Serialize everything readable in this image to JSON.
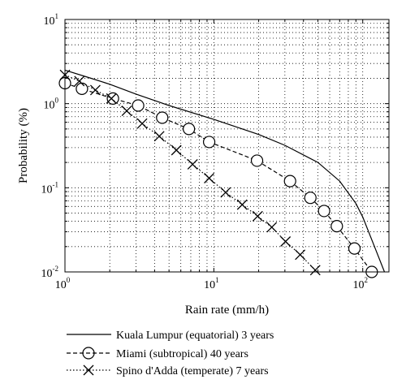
{
  "chart_data": {
    "type": "line",
    "xlabel": "Rain rate (mm/h)",
    "ylabel": "Probability (%)",
    "xscale": "log",
    "yscale": "log",
    "xlim": [
      1,
      150
    ],
    "ylim": [
      0.01,
      10
    ],
    "grid": true,
    "legend_position": "below",
    "x_ticks": [
      {
        "base": "10",
        "exp": "0",
        "value": 1
      },
      {
        "base": "10",
        "exp": "1",
        "value": 10
      },
      {
        "base": "10",
        "exp": "2",
        "value": 100
      }
    ],
    "y_ticks": [
      {
        "base": "10",
        "exp": "-2",
        "value": 0.01
      },
      {
        "base": "10",
        "exp": "-1",
        "value": 0.1
      },
      {
        "base": "10",
        "exp": "0",
        "value": 1
      },
      {
        "base": "10",
        "exp": "1",
        "value": 10
      }
    ],
    "series": [
      {
        "name": "Kuala Lumpur (equatorial) 3 years",
        "style": "solid",
        "marker": "none",
        "x": [
          1,
          1.5,
          2,
          3,
          5,
          10,
          20,
          30,
          50,
          70,
          90,
          100,
          120,
          140
        ],
        "y": [
          2.5,
          2.0,
          1.7,
          1.3,
          0.95,
          0.65,
          0.43,
          0.32,
          0.2,
          0.12,
          0.065,
          0.045,
          0.02,
          0.01
        ]
      },
      {
        "name": "Miami (subtropical) 40 years",
        "style": "dashed",
        "marker": "circle",
        "x": [
          1,
          1.3,
          2.1,
          3.1,
          4.5,
          6.8,
          9.3,
          19.5,
          32.5,
          44.5,
          55,
          67,
          88,
          115
        ],
        "y": [
          1.75,
          1.5,
          1.15,
          0.95,
          0.68,
          0.5,
          0.35,
          0.21,
          0.12,
          0.076,
          0.053,
          0.035,
          0.019,
          0.01
        ]
      },
      {
        "name": "Spino d'Adda (temperate) 7 years",
        "style": "dotted",
        "marker": "x",
        "x": [
          1,
          1.25,
          1.6,
          2.05,
          2.6,
          3.3,
          4.3,
          5.6,
          7.2,
          9.3,
          12,
          15.5,
          19.7,
          24.5,
          30.3,
          38,
          48
        ],
        "y": [
          2.2,
          1.85,
          1.45,
          1.15,
          0.82,
          0.58,
          0.41,
          0.28,
          0.19,
          0.13,
          0.088,
          0.063,
          0.046,
          0.034,
          0.023,
          0.016,
          0.0105
        ]
      }
    ]
  }
}
